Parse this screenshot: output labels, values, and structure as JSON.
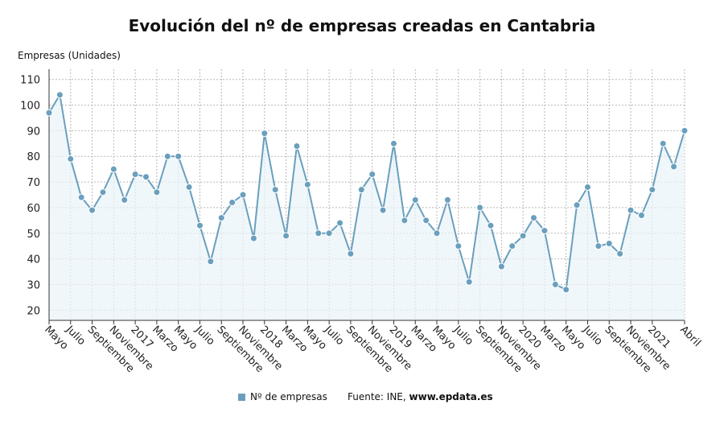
{
  "colors": {
    "series": "#6a9fbd",
    "fill": "#eaf3f8",
    "grid": "#b8b8b8",
    "axis": "#333333"
  },
  "footer": {
    "legend_label": "Nº de empresas",
    "source_prefix": "Fuente: INE,",
    "source_site": "www.epdata.es"
  },
  "chart_data": {
    "type": "line",
    "title": "Evolución del nº de empresas creadas en Cantabria",
    "ylabel": "Empresas (Unidades)",
    "xlabel": "",
    "ylim": [
      16,
      114
    ],
    "yticks": [
      20,
      30,
      40,
      50,
      60,
      70,
      80,
      90,
      100,
      110
    ],
    "grid": true,
    "legend": "bottom",
    "x": [
      "2016-05",
      "2016-06",
      "2016-07",
      "2016-08",
      "2016-09",
      "2016-10",
      "2016-11",
      "2016-12",
      "2017-01",
      "2017-02",
      "2017-03",
      "2017-04",
      "2017-05",
      "2017-06",
      "2017-07",
      "2017-08",
      "2017-09",
      "2017-10",
      "2017-11",
      "2017-12",
      "2018-01",
      "2018-02",
      "2018-03",
      "2018-04",
      "2018-05",
      "2018-06",
      "2018-07",
      "2018-08",
      "2018-09",
      "2018-10",
      "2018-11",
      "2018-12",
      "2019-01",
      "2019-02",
      "2019-03",
      "2019-04",
      "2019-05",
      "2019-06",
      "2019-07",
      "2019-08",
      "2019-09",
      "2019-10",
      "2019-11",
      "2019-12",
      "2020-01",
      "2020-02",
      "2020-03",
      "2020-04",
      "2020-05",
      "2020-06",
      "2020-07",
      "2020-08",
      "2020-09",
      "2020-10",
      "2020-11",
      "2020-12",
      "2021-01",
      "2021-02",
      "2021-03",
      "2021-04"
    ],
    "x_tick_labels": [
      "Mayo",
      "Julio",
      "Septiembre",
      "Noviembre",
      "2017",
      "Marzo",
      "Mayo",
      "Julio",
      "Septiembre",
      "Noviembre",
      "2018",
      "Marzo",
      "Mayo",
      "Julio",
      "Septiembre",
      "Noviembre",
      "2019",
      "Marzo",
      "Mayo",
      "Julio",
      "Septiembre",
      "Noviembre",
      "2020",
      "Marzo",
      "Mayo",
      "Julio",
      "Septiembre",
      "Noviembre",
      "2021",
      "Abril"
    ],
    "series": [
      {
        "name": "Nº de empresas",
        "values": [
          97,
          104,
          79,
          64,
          59,
          66,
          75,
          63,
          73,
          72,
          66,
          80,
          80,
          68,
          53,
          39,
          56,
          62,
          65,
          48,
          89,
          67,
          49,
          84,
          69,
          50,
          50,
          54,
          42,
          67,
          73,
          59,
          85,
          55,
          63,
          55,
          50,
          63,
          45,
          31,
          60,
          53,
          37,
          45,
          49,
          56,
          51,
          30,
          28,
          61,
          68,
          45,
          46,
          42,
          59,
          57,
          67,
          85,
          76,
          90
        ]
      }
    ]
  }
}
